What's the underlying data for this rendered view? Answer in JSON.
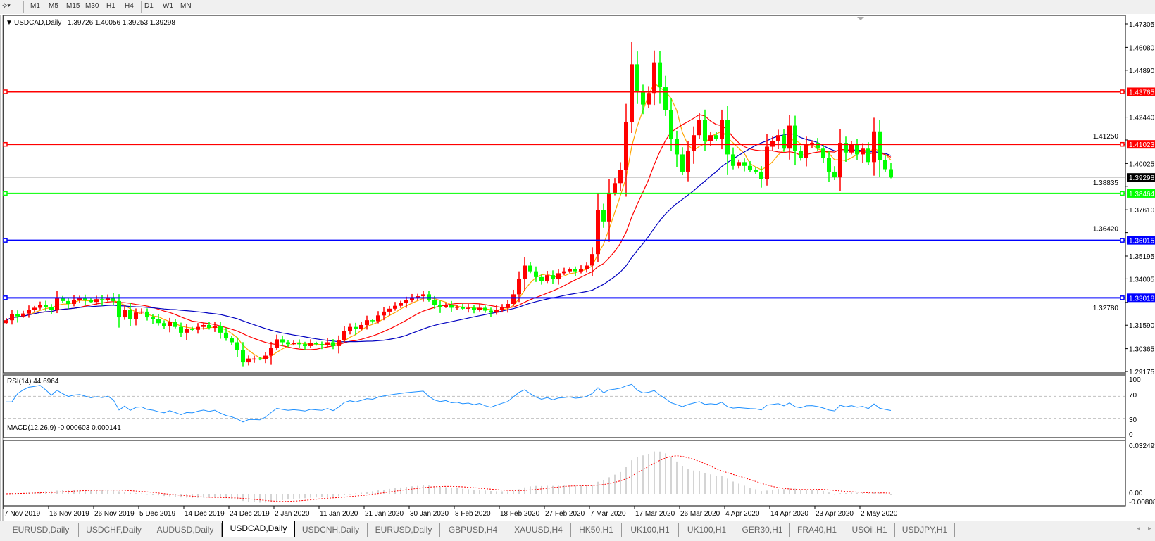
{
  "toolbar": {
    "timeframes": [
      "M1",
      "M5",
      "M15",
      "M30",
      "H1",
      "H4",
      "D1",
      "W1",
      "MN"
    ],
    "active": "D1"
  },
  "chart": {
    "title": "USDCAD,Daily",
    "ohlc": "1.39726 1.40056 1.39253 1.39298",
    "current_price": "1.39298",
    "price_axis": [
      "1.47305",
      "1.46080",
      "1.44890",
      "1.42440",
      "1.41250",
      "1.40025",
      "1.38835",
      "1.37610",
      "1.36420",
      "1.35195",
      "1.34005",
      "1.32780",
      "1.31590",
      "1.30365",
      "1.29175"
    ],
    "levels": [
      {
        "price": "1.43765",
        "color": "#ff0000"
      },
      {
        "price": "1.41023",
        "color": "#ff0000"
      },
      {
        "price": "1.38464",
        "color": "#00ff00"
      },
      {
        "price": "1.36015",
        "color": "#0000ff"
      },
      {
        "price": "1.33018",
        "color": "#0000ff"
      }
    ],
    "up_color": "#ff0000",
    "down_color": "#00ff00",
    "ma_colors": [
      "#ffa500",
      "#ff0000",
      "#0000c0"
    ],
    "closes": [
      1.3185,
      1.3215,
      1.3205,
      1.322,
      1.324,
      1.325,
      1.3265,
      1.3255,
      1.324,
      1.33,
      1.3285,
      1.327,
      1.329,
      1.33,
      1.329,
      1.328,
      1.3295,
      1.329,
      1.3305,
      1.3285,
      1.32,
      1.324,
      1.319,
      1.3225,
      1.323,
      1.32,
      1.319,
      1.317,
      1.3155,
      1.3175,
      1.315,
      1.312,
      1.314,
      1.3135,
      1.315,
      1.316,
      1.3145,
      1.3155,
      1.312,
      1.309,
      1.307,
      1.303,
      1.2965,
      1.2985,
      1.2985,
      1.298,
      1.3,
      1.304,
      1.3085,
      1.307,
      1.306,
      1.3065,
      1.306,
      1.305,
      1.3065,
      1.306,
      1.3055,
      1.307,
      1.305,
      1.308,
      1.313,
      1.315,
      1.314,
      1.316,
      1.3185,
      1.318,
      1.321,
      1.323,
      1.3245,
      1.326,
      1.3275,
      1.329,
      1.33,
      1.331,
      1.332,
      1.329,
      1.3265,
      1.3255,
      1.3265,
      1.325,
      1.3255,
      1.3245,
      1.325,
      1.324,
      1.325,
      1.3235,
      1.3225,
      1.324,
      1.3255,
      1.327,
      1.332,
      1.34,
      1.347,
      1.344,
      1.341,
      1.339,
      1.342,
      1.34,
      1.343,
      1.344,
      1.345,
      1.344,
      1.345,
      1.347,
      1.353,
      1.376,
      1.37,
      1.385,
      1.39,
      1.397,
      1.422,
      1.452,
      1.438,
      1.431,
      1.437,
      1.453,
      1.44,
      1.428,
      1.413,
      1.405,
      1.396,
      1.407,
      1.415,
      1.423,
      1.412,
      1.415,
      1.413,
      1.423,
      1.405,
      1.399,
      1.401,
      1.399,
      1.397,
      1.396,
      1.392,
      1.409,
      1.412,
      1.415,
      1.408,
      1.42,
      1.407,
      1.403,
      1.41,
      1.411,
      1.408,
      1.403,
      1.396,
      1.393,
      1.411,
      1.406,
      1.41,
      1.405,
      1.408,
      1.401,
      1.417,
      1.402,
      1.39726,
      1.39298
    ],
    "last_bar": {
      "open": 1.39726,
      "high": 1.40056,
      "low": 1.39253,
      "close": 1.39298
    }
  },
  "rsi": {
    "label": "RSI(14) 44.6964",
    "axis": [
      "100",
      "70",
      "30",
      "0"
    ],
    "color": "#1e90ff"
  },
  "macd": {
    "label": "MACD(12,26,9) -0.000603 0.000141",
    "axis": [
      "0.032493",
      "0.00",
      "-0.00808"
    ]
  },
  "dates": [
    "7 Nov 2019",
    "16 Nov 2019",
    "26 Nov 2019",
    "5 Dec 2019",
    "14 Dec 2019",
    "24 Dec 2019",
    "2 Jan 2020",
    "11 Jan 2020",
    "21 Jan 2020",
    "30 Jan 2020",
    "8 Feb 2020",
    "18 Feb 2020",
    "27 Feb 2020",
    "7 Mar 2020",
    "17 Mar 2020",
    "26 Mar 2020",
    "4 Apr 2020",
    "14 Apr 2020",
    "23 Apr 2020",
    "2 May 2020"
  ],
  "tabs": [
    "EURUSD,Daily",
    "USDCHF,Daily",
    "AUDUSD,Daily",
    "USDCAD,Daily",
    "USDCNH,Daily",
    "EURUSD,Daily",
    "GBPUSD,H4",
    "XAUUSD,H4",
    "HK50,H1",
    "UK100,H1",
    "UK100,H1",
    "GER30,H1",
    "FRA40,H1",
    "USOil,H1",
    "USDJPY,H1"
  ],
  "active_tab": 3
}
